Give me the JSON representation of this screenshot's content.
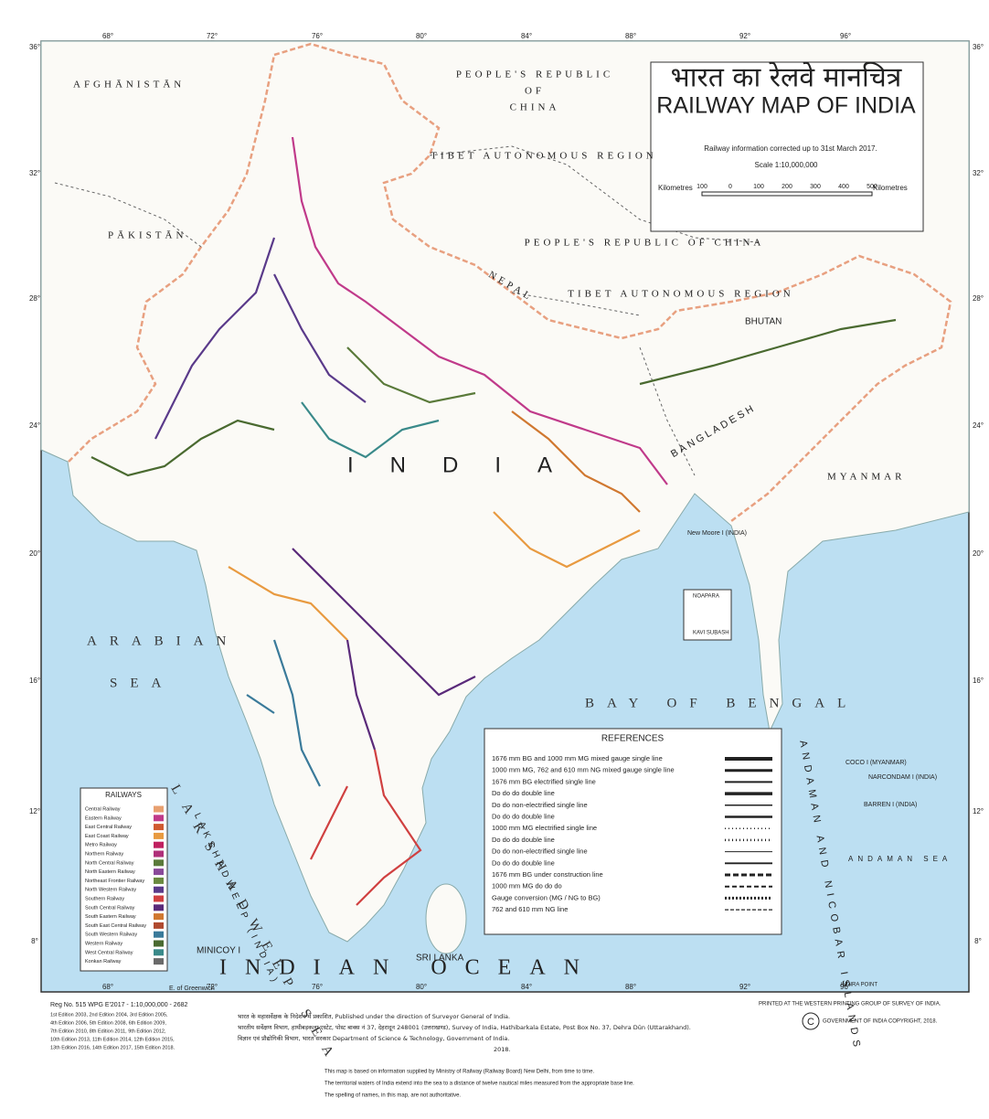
{
  "title": {
    "hindi": "भारत का रेलवे मानचित्र",
    "english": "RAILWAY MAP OF INDIA",
    "info": "Railway information corrected up to 31st March 2017.",
    "scale": "Scale 1:10,000,000"
  },
  "scale_bar": {
    "left": "Kilometres",
    "ticks": [
      "100",
      "0",
      "100",
      "200",
      "300",
      "400",
      "500"
    ],
    "right": "Kilometres"
  },
  "longitudes": [
    "68°",
    "72°",
    "76°",
    "80°",
    "84°",
    "88°",
    "92°",
    "96°"
  ],
  "latitudes": [
    "36°",
    "32°",
    "28°",
    "24°",
    "20°",
    "16°",
    "12°",
    "8°"
  ],
  "greenwich": "E. of Greenwich",
  "places": {
    "afghanistan": "AFGHĀNISTĀN",
    "pakistan": "PĀKISTĀN",
    "china_top": "PEOPLE'S REPUBLIC",
    "china_top2": "OF",
    "china_top3": "CHINA",
    "tibet1": "TIBET AUTONOMOUS REGION",
    "china2": "PEOPLE'S REPUBLIC OF CHINA",
    "tibet2": "TIBET AUTONOMOUS REGION",
    "nepal": "NEPAL",
    "bhutan": "BHUTAN",
    "bangladesh": "BANGLADESH",
    "myanmar": "MYANMAR",
    "india": "INDIA",
    "arabian": "ARABIAN",
    "sea": "SEA",
    "bay": "BAY OF BENGAL",
    "ocean": "INDIAN OCEAN",
    "srilanka": "SRI LANKA",
    "lak_sea": "LAKSHADWEEP SEA",
    "lak": "LAKSHADWEEP (INDIA)",
    "andaman": "ANDAMAN AND NICOBAR ISLANDS",
    "andaman_sea": "ANDAMAN SEA",
    "minicoy": "MINICOY I",
    "coco": "COCO I (MYANMAR)",
    "narcondam": "NARCONDAM I (INDIA)",
    "barren": "BARREN I (INDIA)",
    "newmoore": "New Moore I (INDIA)",
    "noapara": "NOAPARA",
    "kavi": "KAVI SUBASH",
    "indira": "INDIRA POINT"
  },
  "railways": {
    "title": "RAILWAYS",
    "items": [
      {
        "name": "Central Railway",
        "color": "#e8a070"
      },
      {
        "name": "Eastern Railway",
        "color": "#c03a8a"
      },
      {
        "name": "East Central Railway",
        "color": "#d05a30"
      },
      {
        "name": "East Coast Railway",
        "color": "#e89a40"
      },
      {
        "name": "Metro Railway",
        "color": "#c02060"
      },
      {
        "name": "Northern Railway",
        "color": "#b0307a"
      },
      {
        "name": "North Central Railway",
        "color": "#5a7a3a"
      },
      {
        "name": "North Eastern Railway",
        "color": "#8a4a9a"
      },
      {
        "name": "Northeast Frontier Railway",
        "color": "#6a8a40"
      },
      {
        "name": "North Western Railway",
        "color": "#5a3a8a"
      },
      {
        "name": "Southern Railway",
        "color": "#d04040"
      },
      {
        "name": "South Central Railway",
        "color": "#5a2a7a"
      },
      {
        "name": "South Eastern Railway",
        "color": "#d07830"
      },
      {
        "name": "South East Central Railway",
        "color": "#b04a30"
      },
      {
        "name": "South Western Railway",
        "color": "#3a7a9a"
      },
      {
        "name": "Western Railway",
        "color": "#4a6a30"
      },
      {
        "name": "West Central Railway",
        "color": "#3a8a8a"
      },
      {
        "name": "Konkan Railway",
        "color": "#6a6a6a"
      }
    ]
  },
  "references": {
    "title": "REFERENCES",
    "items": [
      "1676 mm BG and 1000 mm MG mixed gauge single line",
      "1000 mm MG, 762 and 610 mm NG mixed gauge single line",
      "1676 mm BG electrified single line",
      "Do do do double line",
      "Do do non-electrified single line",
      "Do do do double line",
      "1000 mm MG electrified single line",
      "Do do do double line",
      "Do do non-electrified single line",
      "Do do do double line",
      "1676 mm BG under construction line",
      "1000 mm MG do do do",
      "Gauge conversion (MG / NG to BG)",
      "762 and 610 mm NG line"
    ]
  },
  "footer": {
    "reg": "Reg No. 515 WPG E'2017 - 1:10,000,000 - 2682",
    "editions": [
      "1st Edition 2003, 2nd Edition 2004, 3rd Edition 2005,",
      "4th Edition 2006, 5th Edition 2008, 6th Edition 2009,",
      "7th Edition 2010, 8th Edition 2011, 9th Edition 2012,",
      "10th Edition 2013, 11th Edition 2014, 12th Edition 2015,",
      "13th Edition 2016, 14th Edition 2017, 15th Edition 2018."
    ],
    "published": [
      "भारत के महासर्वेक्षक के निदेशन में प्रकाशित, Published under the direction of Surveyor General of India.",
      "भारतीय सर्वेक्षण विभाग, हाथीबड़कला एस्टेट, पोस्ट बाक्स नं 37, देहरादून 248001 (उत्तराखण्ड), Survey of India, Hathibarkala Estate, Post Box No. 37, Dehra Dūn (Uttarakhand).",
      "विज्ञान एवं प्रौद्योगिकी विभाग, भारत सरकार Department of Science & Technology, Government of India.",
      "2018."
    ],
    "printed": "PRINTED AT THE WESTERN PRINTING GROUP OF SURVEY OF INDIA.",
    "copyright": "GOVERNMENT OF INDIA COPYRIGHT, 2018.",
    "c": "C",
    "notes": [
      "This map is based on information supplied by Ministry of Railway (Railway Board) New Delhi, from time to time.",
      "The territorial waters of India extend into the sea to a distance of twelve nautical miles measured from the appropriate base line.",
      "The spelling of names, in this map, are not authoritative."
    ]
  }
}
